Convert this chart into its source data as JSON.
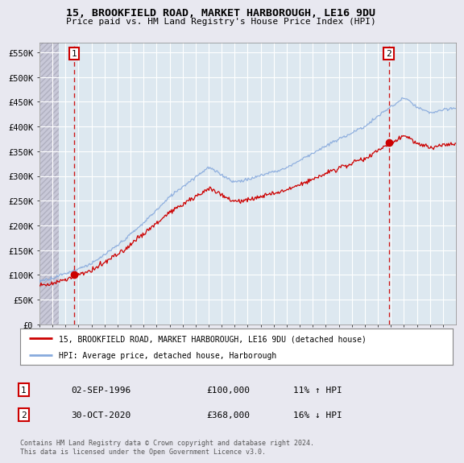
{
  "title": "15, BROOKFIELD ROAD, MARKET HARBOROUGH, LE16 9DU",
  "subtitle": "Price paid vs. HM Land Registry's House Price Index (HPI)",
  "ylabel_ticks": [
    "£0",
    "£50K",
    "£100K",
    "£150K",
    "£200K",
    "£250K",
    "£300K",
    "£350K",
    "£400K",
    "£450K",
    "£500K",
    "£550K"
  ],
  "ytick_values": [
    0,
    50000,
    100000,
    150000,
    200000,
    250000,
    300000,
    350000,
    400000,
    450000,
    500000,
    550000
  ],
  "ylim": [
    0,
    570000
  ],
  "sale1_date": 1996.67,
  "sale1_price": 100000,
  "sale2_date": 2020.83,
  "sale2_price": 368000,
  "legend_line1": "15, BROOKFIELD ROAD, MARKET HARBOROUGH, LE16 9DU (detached house)",
  "legend_line2": "HPI: Average price, detached house, Harborough",
  "annotation1_date": "02-SEP-1996",
  "annotation1_price": "£100,000",
  "annotation1_hpi": "11% ↑ HPI",
  "annotation2_date": "30-OCT-2020",
  "annotation2_price": "£368,000",
  "annotation2_hpi": "16% ↓ HPI",
  "copyright_text": "Contains HM Land Registry data © Crown copyright and database right 2024.\nThis data is licensed under the Open Government Licence v3.0.",
  "line_color_red": "#cc0000",
  "line_color_blue": "#88aadd",
  "bg_color": "#e8e8f0",
  "plot_bg": "#dde8f0",
  "grid_color": "#ffffff",
  "dashed_line_color": "#cc0000",
  "hatch_color": "#c8c8d8",
  "xlim_start": 1994.0,
  "xlim_end": 2026.0
}
